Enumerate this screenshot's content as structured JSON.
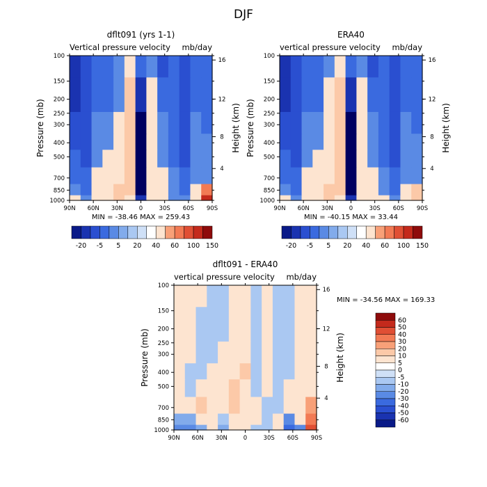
{
  "figure_title": "DJF",
  "colors": {
    "positive": [
      "#fde4d0",
      "#fcc9a8",
      "#f8a078",
      "#f27a54",
      "#e04f34",
      "#c42a1c",
      "#8e0b0b"
    ],
    "negative": [
      "#cfe0f7",
      "#aac8f2",
      "#82abeb",
      "#5a8ae4",
      "#3a6adf",
      "#2a4fd0",
      "#1a33b0",
      "#0a1a88",
      "#000060"
    ]
  },
  "chart_data": [
    {
      "type": "heatmap",
      "title": "dflt091 (yrs 1-1)",
      "subtitle_left": "Vertical pressure velocity",
      "subtitle_right": "mb/day",
      "xlabel": "",
      "ylabel": "Pressure (mb)",
      "ylabel_right": "Height (km)",
      "x_ticks": [
        "90N",
        "60N",
        "30N",
        "0",
        "30S",
        "60S",
        "90S"
      ],
      "x_range": [
        90,
        -90
      ],
      "y_ticks": [
        100,
        150,
        200,
        250,
        300,
        400,
        500,
        700,
        850,
        1000
      ],
      "y_tick_labels": [
        "100",
        "150",
        "200",
        "250",
        "300",
        "400",
        "500",
        "700",
        "850",
        "1000"
      ],
      "y_range": [
        100,
        1000
      ],
      "y_scale": "log",
      "right_ticks": [
        "4",
        "8",
        "12",
        "16"
      ],
      "min_label": "MIN = -38.46",
      "max_label": "MAX = 259.43",
      "stats": {
        "min": -38.46,
        "max": 259.43
      },
      "legend": {
        "orientation": "horizontal",
        "labels": [
          "-20",
          "-5",
          "5",
          "20",
          "40",
          "60",
          "100",
          "150"
        ],
        "colors": [
          "#0a1a88",
          "#1a33b0",
          "#2a4fd0",
          "#3a6adf",
          "#5a8ae4",
          "#82abeb",
          "#aac8f2",
          "#cfe0f7",
          "#ffffff",
          "#fde4d0",
          "#f8a078",
          "#f27a54",
          "#e04f34",
          "#c42a1c",
          "#8e0b0b"
        ]
      },
      "field": {
        "latitudes": [
          90,
          75,
          60,
          45,
          30,
          15,
          0,
          -15,
          -30,
          -45,
          -60,
          -75,
          -90
        ],
        "levels": [
          100,
          200,
          300,
          400,
          500,
          700,
          850,
          1000
        ],
        "values": [
          [
            -20,
            -15,
            -10,
            -10,
            -5,
            5,
            -10,
            -5,
            -15,
            -10,
            -15,
            -10,
            -10
          ],
          [
            -20,
            -15,
            -10,
            -10,
            -5,
            20,
            -20,
            5,
            -10,
            -10,
            -15,
            -10,
            -10
          ],
          [
            -15,
            -15,
            -5,
            -5,
            5,
            20,
            -30,
            5,
            -5,
            -10,
            -15,
            -5,
            -10
          ],
          [
            -15,
            -15,
            -5,
            -5,
            5,
            25,
            -30,
            5,
            -5,
            -10,
            -15,
            -5,
            -5
          ],
          [
            -10,
            -15,
            -5,
            5,
            5,
            25,
            -30,
            5,
            -5,
            -10,
            -15,
            -5,
            -5
          ],
          [
            -10,
            -10,
            5,
            5,
            5,
            25,
            -30,
            5,
            5,
            -5,
            -10,
            -5,
            -5
          ],
          [
            -5,
            -10,
            5,
            5,
            20,
            20,
            -30,
            5,
            5,
            -5,
            -10,
            5,
            60
          ],
          [
            5,
            -5,
            5,
            5,
            20,
            5,
            -20,
            5,
            5,
            -5,
            -5,
            5,
            150
          ]
        ]
      }
    },
    {
      "type": "heatmap",
      "title": "ERA40",
      "subtitle_left": "vertical pressure velocity",
      "subtitle_right": "mb/day",
      "xlabel": "",
      "ylabel": "Pressure (mb)",
      "ylabel_right": "Height (km)",
      "x_ticks": [
        "90N",
        "60N",
        "30N",
        "0",
        "30S",
        "60S",
        "90S"
      ],
      "x_range": [
        90,
        -90
      ],
      "y_ticks": [
        100,
        150,
        200,
        250,
        300,
        400,
        500,
        700,
        850,
        1000
      ],
      "y_tick_labels": [
        "100",
        "150",
        "200",
        "250",
        "300",
        "400",
        "500",
        "700",
        "850",
        "1000"
      ],
      "y_range": [
        100,
        1000
      ],
      "y_scale": "log",
      "right_ticks": [
        "4",
        "8",
        "12",
        "16"
      ],
      "min_label": "MIN = -40.15",
      "max_label": "MAX = 33.44",
      "stats": {
        "min": -40.15,
        "max": 33.44
      },
      "legend": {
        "orientation": "horizontal",
        "labels": [
          "-20",
          "-5",
          "5",
          "20",
          "40",
          "60",
          "100",
          "150"
        ],
        "colors": [
          "#0a1a88",
          "#1a33b0",
          "#2a4fd0",
          "#3a6adf",
          "#5a8ae4",
          "#82abeb",
          "#aac8f2",
          "#cfe0f7",
          "#ffffff",
          "#fde4d0",
          "#f8a078",
          "#f27a54",
          "#e04f34",
          "#c42a1c",
          "#8e0b0b"
        ]
      },
      "field": {
        "latitudes": [
          90,
          75,
          60,
          45,
          30,
          15,
          0,
          -15,
          -30,
          -45,
          -60,
          -75,
          -90
        ],
        "levels": [
          100,
          200,
          300,
          400,
          500,
          700,
          850,
          1000
        ],
        "values": [
          [
            -20,
            -15,
            -10,
            -10,
            -5,
            5,
            -10,
            -5,
            -15,
            -10,
            -15,
            -10,
            -10
          ],
          [
            -20,
            -15,
            -10,
            -10,
            5,
            20,
            -20,
            5,
            -10,
            -10,
            -15,
            -10,
            -10
          ],
          [
            -15,
            -15,
            -5,
            -5,
            5,
            20,
            -30,
            5,
            -5,
            -10,
            -15,
            -5,
            -10
          ],
          [
            -15,
            -15,
            -5,
            -5,
            5,
            25,
            -35,
            5,
            -5,
            -10,
            -15,
            -5,
            -5
          ],
          [
            -10,
            -15,
            -5,
            5,
            5,
            25,
            -35,
            5,
            -5,
            -10,
            -15,
            -5,
            -5
          ],
          [
            -10,
            -10,
            5,
            5,
            5,
            25,
            -35,
            5,
            5,
            -5,
            -10,
            -5,
            -5
          ],
          [
            -5,
            -10,
            5,
            5,
            20,
            20,
            -30,
            5,
            5,
            -5,
            -10,
            5,
            20
          ],
          [
            5,
            -5,
            5,
            5,
            20,
            5,
            -20,
            5,
            5,
            5,
            -5,
            5,
            20
          ]
        ]
      }
    },
    {
      "type": "heatmap",
      "title": "dflt091 - ERA40",
      "subtitle_left": "vertical pressure velocity",
      "subtitle_right": "mb/day",
      "xlabel": "",
      "ylabel": "Pressure (mb)",
      "ylabel_right": "Height (km)",
      "x_ticks": [
        "90N",
        "60N",
        "30N",
        "0",
        "30S",
        "60S",
        "90S"
      ],
      "x_range": [
        90,
        -90
      ],
      "y_ticks": [
        100,
        150,
        200,
        250,
        300,
        400,
        500,
        700,
        850,
        1000
      ],
      "y_tick_labels": [
        "100",
        "150",
        "200",
        "250",
        "300",
        "400",
        "500",
        "700",
        "850",
        "1000"
      ],
      "y_range": [
        100,
        1000
      ],
      "y_scale": "log",
      "right_ticks": [
        "4",
        "8",
        "12",
        "16"
      ],
      "min_label": "MIN = -34.56",
      "max_label": "MAX = 169.33",
      "stats": {
        "min": -34.56,
        "max": 169.33
      },
      "legend": {
        "orientation": "vertical",
        "labels": [
          "60",
          "50",
          "40",
          "30",
          "20",
          "10",
          "5",
          "0",
          "-5",
          "-10",
          "-20",
          "-30",
          "-40",
          "-50",
          "-60"
        ],
        "colors": [
          "#8e0b0b",
          "#c42a1c",
          "#e04f34",
          "#f27a54",
          "#f8a078",
          "#fcc9a8",
          "#fde4d0",
          "#ffffff",
          "#cfe0f7",
          "#aac8f2",
          "#82abeb",
          "#5a8ae4",
          "#3a6adf",
          "#2a4fd0",
          "#1a33b0",
          "#0a1a88"
        ]
      },
      "field": {
        "latitudes": [
          90,
          75,
          60,
          45,
          30,
          15,
          0,
          -15,
          -30,
          -45,
          -60,
          -75,
          -90
        ],
        "levels": [
          100,
          200,
          300,
          400,
          500,
          700,
          850,
          1000
        ],
        "values": [
          [
            2,
            2,
            2,
            -2,
            -2,
            2,
            2,
            -2,
            2,
            -2,
            -2,
            2,
            2
          ],
          [
            2,
            2,
            -2,
            -2,
            -2,
            2,
            2,
            -2,
            2,
            -2,
            -2,
            2,
            2
          ],
          [
            2,
            2,
            -2,
            -2,
            2,
            2,
            2,
            -2,
            2,
            -2,
            -2,
            2,
            2
          ],
          [
            2,
            -2,
            -2,
            2,
            2,
            2,
            5,
            -2,
            2,
            -2,
            -2,
            2,
            2
          ],
          [
            2,
            -2,
            2,
            2,
            2,
            5,
            2,
            -2,
            2,
            -2,
            2,
            2,
            2
          ],
          [
            2,
            2,
            5,
            2,
            2,
            5,
            2,
            2,
            -2,
            -2,
            2,
            2,
            10
          ],
          [
            -5,
            -5,
            2,
            2,
            -2,
            2,
            2,
            2,
            -2,
            2,
            -10,
            2,
            20
          ],
          [
            -10,
            -10,
            -5,
            2,
            -5,
            2,
            2,
            -2,
            -2,
            2,
            -20,
            -10,
            30
          ]
        ]
      }
    }
  ]
}
